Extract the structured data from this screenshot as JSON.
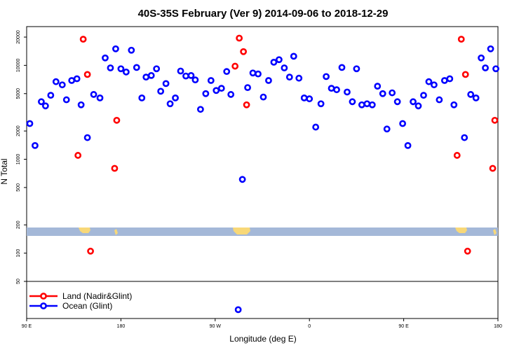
{
  "chart_data": {
    "type": "scatter",
    "title": "40S-35S February (Ver 9)   2014-09-06 to 2018-12-29",
    "xlabel": "Longitude (deg E)",
    "ylabel": "N Total",
    "y_scale": "log",
    "x_ticks": [
      {
        "value": 90,
        "label": "90 E"
      },
      {
        "value": 180,
        "label": "180"
      },
      {
        "value": 270,
        "label": "90 W"
      },
      {
        "value": 360,
        "label": "0"
      },
      {
        "value": 450,
        "label": "90 E"
      },
      {
        "value": 540,
        "label": "180"
      }
    ],
    "xlim": [
      90,
      540
    ],
    "y_ticks": [
      50,
      100,
      200,
      500,
      1000,
      2000,
      5000,
      10000,
      20000
    ],
    "series": [
      {
        "name": "Land (Nadir&Glint)",
        "color": "#ff0000",
        "points": [
          {
            "x": 139,
            "y": 1100
          },
          {
            "x": 144,
            "y": 19000
          },
          {
            "x": 148,
            "y": 8000
          },
          {
            "x": 151,
            "y": 105
          },
          {
            "x": 174,
            "y": 800
          },
          {
            "x": 176,
            "y": 2600
          },
          {
            "x": 289,
            "y": 9800
          },
          {
            "x": 293,
            "y": 19500
          },
          {
            "x": 297,
            "y": 14000
          },
          {
            "x": 300,
            "y": 3800
          },
          {
            "x": 501,
            "y": 1100
          },
          {
            "x": 505,
            "y": 19000
          },
          {
            "x": 509,
            "y": 8000
          },
          {
            "x": 511,
            "y": 105
          },
          {
            "x": 535,
            "y": 800
          },
          {
            "x": 537,
            "y": 2600
          }
        ]
      },
      {
        "name": "Ocean (Glint)",
        "color": "#0000ff",
        "points": [
          {
            "x": 93,
            "y": 2400
          },
          {
            "x": 98,
            "y": 1400
          },
          {
            "x": 104,
            "y": 4100
          },
          {
            "x": 108,
            "y": 3700
          },
          {
            "x": 113,
            "y": 4800
          },
          {
            "x": 118,
            "y": 6700
          },
          {
            "x": 124,
            "y": 6200
          },
          {
            "x": 128,
            "y": 4300
          },
          {
            "x": 133,
            "y": 6900
          },
          {
            "x": 138,
            "y": 7200
          },
          {
            "x": 142,
            "y": 3800
          },
          {
            "x": 148,
            "y": 1700
          },
          {
            "x": 154,
            "y": 4900
          },
          {
            "x": 160,
            "y": 4500
          },
          {
            "x": 165,
            "y": 12000
          },
          {
            "x": 170,
            "y": 9400
          },
          {
            "x": 175,
            "y": 15000
          },
          {
            "x": 180,
            "y": 9200
          },
          {
            "x": 185,
            "y": 8500
          },
          {
            "x": 190,
            "y": 14500
          },
          {
            "x": 195,
            "y": 9500
          },
          {
            "x": 200,
            "y": 4500
          },
          {
            "x": 204,
            "y": 7500
          },
          {
            "x": 209,
            "y": 7800
          },
          {
            "x": 214,
            "y": 9200
          },
          {
            "x": 218,
            "y": 5300
          },
          {
            "x": 223,
            "y": 6400
          },
          {
            "x": 227,
            "y": 3900
          },
          {
            "x": 232,
            "y": 4500
          },
          {
            "x": 237,
            "y": 8700
          },
          {
            "x": 242,
            "y": 7700
          },
          {
            "x": 247,
            "y": 7800
          },
          {
            "x": 251,
            "y": 7000
          },
          {
            "x": 256,
            "y": 3400
          },
          {
            "x": 261,
            "y": 5000
          },
          {
            "x": 266,
            "y": 6900
          },
          {
            "x": 271,
            "y": 5400
          },
          {
            "x": 276,
            "y": 5700
          },
          {
            "x": 281,
            "y": 8600
          },
          {
            "x": 285,
            "y": 4900
          },
          {
            "x": 296,
            "y": 610
          },
          {
            "x": 292,
            "y": 25
          },
          {
            "x": 301,
            "y": 5800
          },
          {
            "x": 306,
            "y": 8300
          },
          {
            "x": 311,
            "y": 8100
          },
          {
            "x": 316,
            "y": 4600
          },
          {
            "x": 321,
            "y": 6900
          },
          {
            "x": 326,
            "y": 10800
          },
          {
            "x": 331,
            "y": 11500
          },
          {
            "x": 336,
            "y": 9400
          },
          {
            "x": 341,
            "y": 7500
          },
          {
            "x": 345,
            "y": 12500
          },
          {
            "x": 350,
            "y": 7300
          },
          {
            "x": 355,
            "y": 4500
          },
          {
            "x": 360,
            "y": 4400
          },
          {
            "x": 366,
            "y": 2200
          },
          {
            "x": 371,
            "y": 3900
          },
          {
            "x": 376,
            "y": 7600
          },
          {
            "x": 381,
            "y": 5700
          },
          {
            "x": 386,
            "y": 5500
          },
          {
            "x": 391,
            "y": 9500
          },
          {
            "x": 396,
            "y": 5200
          },
          {
            "x": 401,
            "y": 4100
          },
          {
            "x": 405,
            "y": 9200
          },
          {
            "x": 410,
            "y": 3800
          },
          {
            "x": 415,
            "y": 3900
          },
          {
            "x": 420,
            "y": 3800
          },
          {
            "x": 425,
            "y": 6000
          },
          {
            "x": 430,
            "y": 5000
          },
          {
            "x": 434,
            "y": 2100
          },
          {
            "x": 439,
            "y": 5100
          },
          {
            "x": 444,
            "y": 4100
          },
          {
            "x": 449,
            "y": 2400
          },
          {
            "x": 454,
            "y": 1400
          },
          {
            "x": 459,
            "y": 4100
          },
          {
            "x": 464,
            "y": 3700
          },
          {
            "x": 469,
            "y": 4800
          },
          {
            "x": 474,
            "y": 6700
          },
          {
            "x": 479,
            "y": 6200
          },
          {
            "x": 484,
            "y": 4300
          },
          {
            "x": 489,
            "y": 6900
          },
          {
            "x": 494,
            "y": 7200
          },
          {
            "x": 498,
            "y": 3800
          },
          {
            "x": 508,
            "y": 1700
          },
          {
            "x": 514,
            "y": 4900
          },
          {
            "x": 519,
            "y": 4500
          },
          {
            "x": 524,
            "y": 12000
          },
          {
            "x": 528,
            "y": 9400
          },
          {
            "x": 533,
            "y": 15000
          },
          {
            "x": 538,
            "y": 9200
          }
        ]
      }
    ],
    "legend": {
      "placement": "bottom-left"
    },
    "map_strip": {
      "ocean_color": "#a4b8d8",
      "land_color": "#f8d878"
    }
  }
}
